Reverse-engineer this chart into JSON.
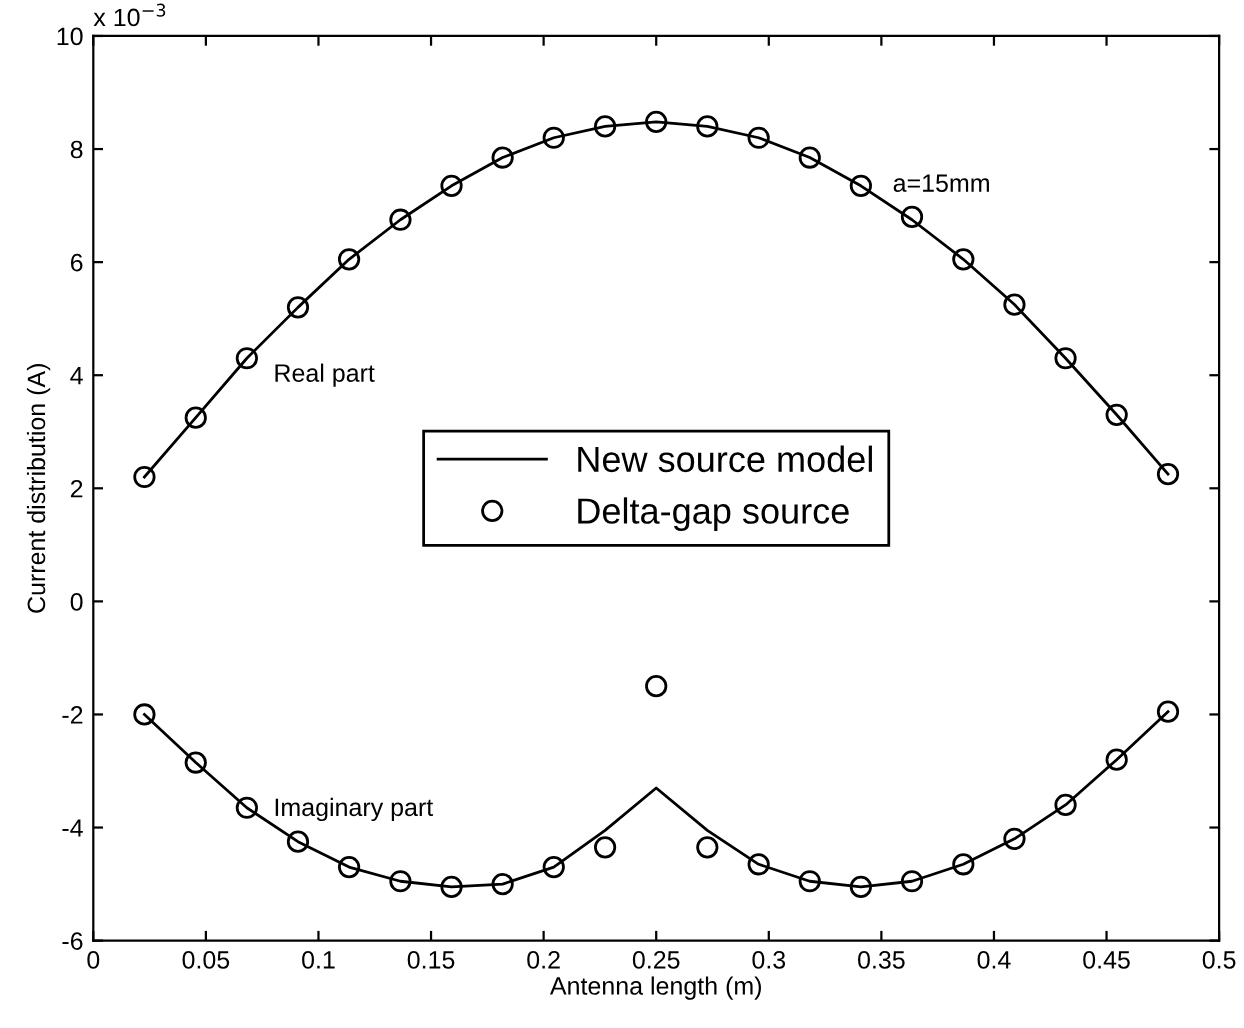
{
  "chart_data": {
    "type": "line",
    "xlabel": "Antenna length (m)",
    "ylabel": "Current distribution (A)",
    "x": [
      0.0227,
      0.0455,
      0.0682,
      0.0909,
      0.1136,
      0.1364,
      0.1591,
      0.1818,
      0.2045,
      0.2273,
      0.25,
      0.2727,
      0.2955,
      0.3182,
      0.3409,
      0.3636,
      0.3864,
      0.4091,
      0.4318,
      0.4545,
      0.4773
    ],
    "series": [
      {
        "name": "New source model",
        "color": "#000000",
        "marker": "none",
        "line_style": "solid",
        "values": [
          2.2,
          3.25,
          4.3,
          5.2,
          6.05,
          6.75,
          7.35,
          7.85,
          8.2,
          8.4,
          8.48,
          8.4,
          8.2,
          7.85,
          7.35,
          6.75,
          6.05,
          5.25,
          4.3,
          3.3,
          2.25
        ]
      },
      {
        "color": "#000000",
        "marker": "none",
        "line_style": "solid",
        "values": [
          -2.0,
          -2.85,
          -3.65,
          -4.25,
          -4.7,
          -4.95,
          -5.05,
          -5.0,
          -4.7,
          -4.05,
          -3.3,
          -4.05,
          -4.65,
          -4.95,
          -5.05,
          -4.95,
          -4.65,
          -4.2,
          -3.6,
          -2.8,
          -1.95
        ]
      },
      {
        "name": "Delta-gap source",
        "type": "scatter",
        "color": "#000000",
        "marker": "circle",
        "values": [
          2.2,
          3.25,
          4.3,
          5.2,
          6.05,
          6.75,
          7.35,
          7.85,
          8.2,
          8.4,
          8.48,
          8.4,
          8.2,
          7.85,
          7.35,
          6.8,
          6.05,
          5.25,
          4.3,
          3.3,
          2.25
        ]
      },
      {
        "type": "scatter",
        "color": "#000000",
        "marker": "circle",
        "values": [
          -2.0,
          -2.85,
          -3.65,
          -4.25,
          -4.7,
          -4.95,
          -5.05,
          -5.0,
          -4.7,
          -4.35,
          -1.5,
          -4.35,
          -4.65,
          -4.95,
          -5.05,
          -4.95,
          -4.65,
          -4.2,
          -3.6,
          -2.8,
          -1.95
        ]
      }
    ],
    "xlim": [
      0,
      0.5
    ],
    "xticks": [
      0,
      0.05,
      0.1,
      0.15,
      0.2,
      0.25,
      0.3,
      0.35,
      0.4,
      0.45,
      0.5
    ],
    "ylim": [
      -6,
      10
    ],
    "yticks": [
      -6,
      -4,
      -2,
      0,
      2,
      4,
      6,
      8,
      10
    ],
    "grid": false,
    "legend": "center",
    "annotations": [
      "x 10$^{−3}$",
      "Real part",
      "Imaginary part",
      "a=15mm"
    ]
  }
}
